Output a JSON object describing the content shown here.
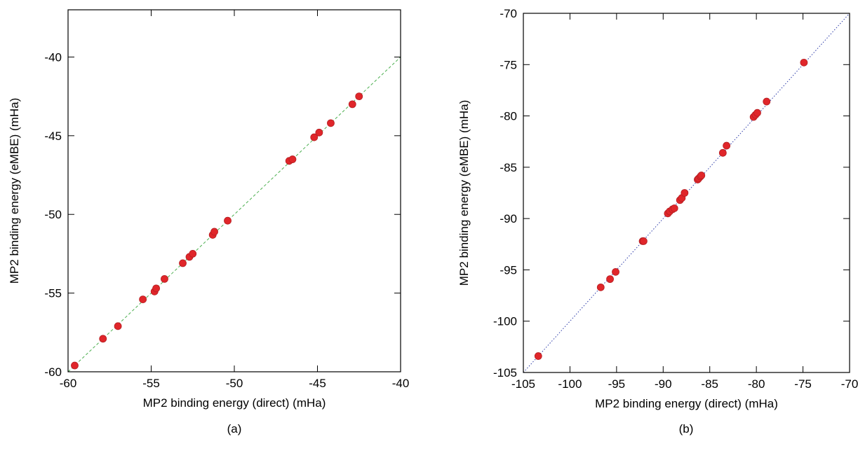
{
  "chart_data": [
    {
      "type": "scatter",
      "caption": "(a)",
      "xlabel": "MP2 binding energy (direct) (mHa)",
      "ylabel": "MP2 binding energy (eMBE) (mHa)",
      "xlim": [
        -60,
        -40
      ],
      "ylim": [
        -60,
        -37
      ],
      "xticks": [
        "-60",
        "-55",
        "-50",
        "-45",
        "-40"
      ],
      "yticks": [
        "-60",
        "-55",
        "-50",
        "-45",
        "-40"
      ],
      "grid": false,
      "reference_line": {
        "style": "dashed",
        "color": "#4caf50",
        "slope": 1
      },
      "marker_color": "#e0262a",
      "series": [
        {
          "points": [
            [
              -59.6,
              -59.6
            ],
            [
              -57.9,
              -57.9
            ],
            [
              -57.0,
              -57.1
            ],
            [
              -55.5,
              -55.4
            ],
            [
              -54.8,
              -54.9
            ],
            [
              -54.7,
              -54.7
            ],
            [
              -54.2,
              -54.1
            ],
            [
              -53.1,
              -53.1
            ],
            [
              -52.7,
              -52.7
            ],
            [
              -52.5,
              -52.5
            ],
            [
              -51.3,
              -51.3
            ],
            [
              -51.2,
              -51.1
            ],
            [
              -50.4,
              -50.4
            ],
            [
              -46.7,
              -46.6
            ],
            [
              -46.5,
              -46.5
            ],
            [
              -45.2,
              -45.1
            ],
            [
              -44.9,
              -44.8
            ],
            [
              -44.2,
              -44.2
            ],
            [
              -42.9,
              -43.0
            ],
            [
              -42.5,
              -42.5
            ]
          ]
        }
      ]
    },
    {
      "type": "scatter",
      "caption": "(b)",
      "xlabel": "MP2 binding energy (direct) (mHa)",
      "ylabel": "MP2 binding energy (eMBE) (mHa)",
      "xlim": [
        -105,
        -70
      ],
      "ylim": [
        -105,
        -70
      ],
      "xticks": [
        "-105",
        "-100",
        "-95",
        "-90",
        "-85",
        "-80",
        "-75",
        "-70"
      ],
      "yticks": [
        "-105",
        "-100",
        "-95",
        "-90",
        "-85",
        "-80",
        "-75",
        "-70"
      ],
      "grid": false,
      "reference_line": {
        "style": "dotted",
        "color": "#2b3aa8",
        "slope": 1
      },
      "marker_color": "#e0262a",
      "series": [
        {
          "points": [
            [
              -103.4,
              -103.4
            ],
            [
              -96.7,
              -96.7
            ],
            [
              -95.7,
              -95.9
            ],
            [
              -95.1,
              -95.2
            ],
            [
              -92.2,
              -92.2
            ],
            [
              -92.1,
              -92.2
            ],
            [
              -89.5,
              -89.5
            ],
            [
              -89.3,
              -89.3
            ],
            [
              -89.0,
              -89.1
            ],
            [
              -88.8,
              -89.0
            ],
            [
              -88.2,
              -88.2
            ],
            [
              -88.0,
              -88.0
            ],
            [
              -87.7,
              -87.5
            ],
            [
              -86.3,
              -86.2
            ],
            [
              -86.2,
              -86.1
            ],
            [
              -86.0,
              -85.9
            ],
            [
              -85.9,
              -85.8
            ],
            [
              -83.6,
              -83.6
            ],
            [
              -83.2,
              -82.9
            ],
            [
              -80.3,
              -80.1
            ],
            [
              -80.1,
              -79.9
            ],
            [
              -79.9,
              -79.7
            ],
            [
              -78.9,
              -78.6
            ],
            [
              -74.9,
              -74.8
            ]
          ]
        }
      ]
    }
  ]
}
